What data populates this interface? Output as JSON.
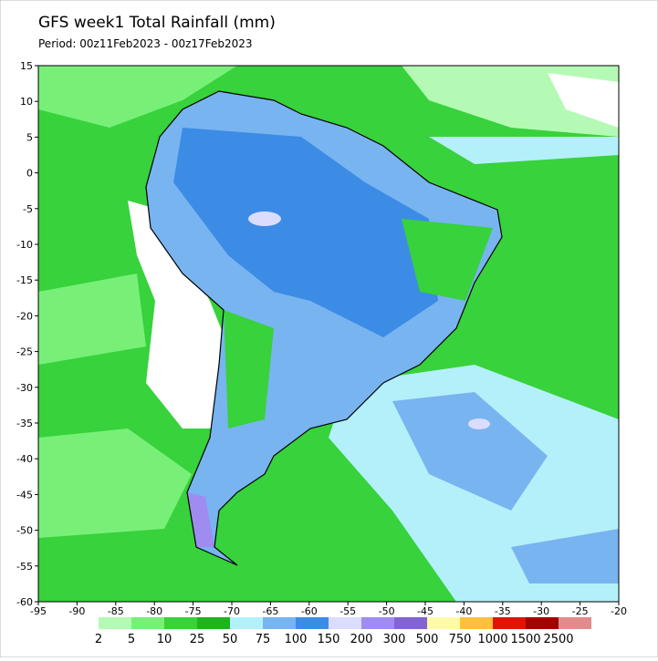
{
  "title": "GFS week1 Total Rainfall (mm)",
  "subtitle": "Period: 00z11Feb2023 - 00z17Feb2023",
  "map": {
    "xlim": [
      -95,
      -20
    ],
    "ylim": [
      -60,
      15
    ],
    "xticks": [
      -95,
      -90,
      -85,
      -80,
      -75,
      -70,
      -65,
      -60,
      -55,
      -50,
      -45,
      -40,
      -35,
      -30,
      -25,
      -20
    ],
    "yticks": [
      15,
      10,
      5,
      0,
      -5,
      -10,
      -15,
      -20,
      -25,
      -30,
      -35,
      -40,
      -45,
      -50,
      -55,
      -60
    ]
  },
  "legend": {
    "levels": [
      2,
      5,
      10,
      25,
      50,
      75,
      100,
      150,
      200,
      300,
      500,
      750,
      1000,
      1500,
      2500
    ],
    "colors": [
      "#b4fab4",
      "#78f078",
      "#37d23c",
      "#1eb41e",
      "#b4f0fa",
      "#78b4f0",
      "#3c8ce6",
      "#dcdcff",
      "#a08cf0",
      "#8264d2",
      "#fffaaa",
      "#ffc03c",
      "#e11400",
      "#a50000",
      "#e18c8c"
    ]
  }
}
